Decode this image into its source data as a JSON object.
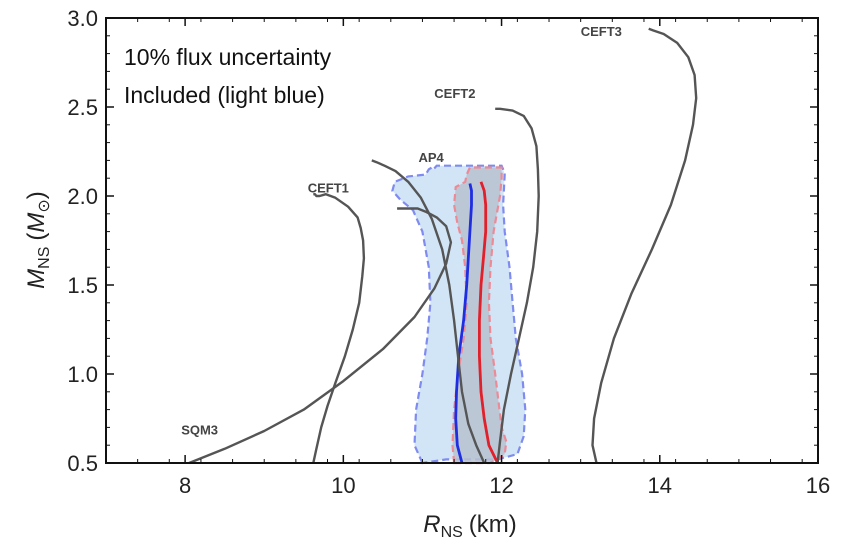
{
  "chart_data": {
    "type": "line",
    "xlabel": {
      "main": "R",
      "sub": "NS",
      "unit": "(km)"
    },
    "ylabel": {
      "main": "M",
      "sub": "NS",
      "unit_open": "(",
      "unit_main": "M",
      "unit_sub": "⊙",
      "unit_close": ")"
    },
    "xlim": [
      7,
      16
    ],
    "ylim": [
      0.5,
      3.0
    ],
    "xticks": [
      "8",
      "10",
      "12",
      "14",
      "16"
    ],
    "yticks": [
      "0.5",
      "1.0",
      "1.5",
      "2.0",
      "2.5",
      "3.0"
    ],
    "xtick_values": [
      8,
      10,
      12,
      14,
      16
    ],
    "ytick_values": [
      0.5,
      1.0,
      1.5,
      2.0,
      2.5,
      3.0
    ],
    "annotation": [
      "10% flux uncertainty",
      "Included (light blue)"
    ],
    "grid": false,
    "colors": {
      "eos": "#555555",
      "blue_line": "#1f2ee0",
      "red_line": "#e0202a",
      "light_blue_fill": "#d2e5f7",
      "light_blue_edge": "#7f8bf0",
      "gray_fill": "#b8c2d0",
      "pink_edge": "#ec8a96"
    },
    "series": [
      {
        "name": "CEFT1",
        "label_at": [
          9.55,
          2.02
        ],
        "x": [
          9.62,
          9.66,
          9.72,
          9.8,
          9.9,
          10.02,
          10.12,
          10.2,
          10.24,
          10.26,
          10.25,
          10.22,
          10.18,
          10.06,
          9.9,
          9.78,
          9.7,
          9.66,
          9.64,
          9.62
        ],
        "y": [
          0.5,
          0.58,
          0.7,
          0.82,
          0.95,
          1.1,
          1.25,
          1.4,
          1.55,
          1.65,
          1.75,
          1.82,
          1.88,
          1.94,
          1.99,
          2.01,
          2.0,
          2.0,
          2.01,
          2.01
        ]
      },
      {
        "name": "AP4",
        "label_at": [
          10.95,
          2.19
        ],
        "x": [
          11.78,
          11.68,
          11.58,
          11.5,
          11.45,
          11.4,
          11.34,
          11.25,
          11.12,
          10.98,
          10.82,
          10.66,
          10.52,
          10.42,
          10.36
        ],
        "y": [
          0.5,
          0.6,
          0.72,
          0.9,
          1.1,
          1.3,
          1.5,
          1.7,
          1.87,
          1.99,
          2.08,
          2.14,
          2.17,
          2.19,
          2.2
        ]
      },
      {
        "name": "SQM3",
        "label_at": [
          7.95,
          0.66
        ],
        "x": [
          8.05,
          8.5,
          9.0,
          9.5,
          10.0,
          10.5,
          10.9,
          11.15,
          11.3,
          11.36,
          11.3,
          11.18,
          11.05,
          10.94,
          10.8,
          10.68
        ],
        "y": [
          0.5,
          0.58,
          0.68,
          0.8,
          0.96,
          1.14,
          1.32,
          1.48,
          1.62,
          1.74,
          1.83,
          1.88,
          1.91,
          1.93,
          1.93,
          1.93
        ]
      },
      {
        "name": "CEFT2",
        "label_at": [
          11.15,
          2.55
        ],
        "x": [
          11.95,
          11.98,
          12.03,
          12.12,
          12.22,
          12.32,
          12.4,
          12.45,
          12.47,
          12.46,
          12.44,
          12.38,
          12.28,
          12.14,
          11.98,
          11.92
        ],
        "y": [
          0.5,
          0.62,
          0.8,
          1.0,
          1.2,
          1.4,
          1.6,
          1.8,
          2.0,
          2.15,
          2.28,
          2.38,
          2.45,
          2.48,
          2.49,
          2.49
        ]
      },
      {
        "name": "CEFT3",
        "label_at": [
          13.0,
          2.9
        ],
        "x": [
          13.2,
          13.15,
          13.17,
          13.26,
          13.42,
          13.64,
          13.9,
          14.14,
          14.32,
          14.42,
          14.46,
          14.44,
          14.36,
          14.22,
          14.05,
          13.92,
          13.86
        ],
        "y": [
          0.5,
          0.6,
          0.75,
          0.95,
          1.2,
          1.45,
          1.7,
          1.95,
          2.2,
          2.4,
          2.55,
          2.68,
          2.78,
          2.86,
          2.91,
          2.93,
          2.94
        ]
      }
    ],
    "regions": [
      {
        "role": "light_blue",
        "x": [
          11.0,
          10.9,
          10.92,
          11.0,
          11.06,
          11.1,
          11.08,
          11.0,
          10.88,
          10.72,
          10.62,
          10.65,
          10.82,
          11.04,
          11.08,
          11.12,
          11.14,
          11.18,
          11.24,
          12.0,
          12.02,
          12.04,
          12.02,
          12.04,
          12.1,
          12.14,
          12.18,
          12.26,
          12.3,
          12.28,
          12.2,
          11.95,
          11.3
        ],
        "y": [
          0.5,
          0.6,
          0.8,
          1.0,
          1.2,
          1.4,
          1.6,
          1.8,
          1.92,
          1.98,
          2.03,
          2.08,
          2.11,
          2.12,
          2.15,
          2.16,
          2.15,
          2.17,
          2.17,
          2.17,
          2.15,
          2.12,
          1.95,
          1.8,
          1.6,
          1.4,
          1.2,
          1.0,
          0.8,
          0.65,
          0.55,
          0.52,
          0.52
        ]
      },
      {
        "role": "gray",
        "x": [
          11.4,
          11.38,
          11.4,
          11.45,
          11.52,
          11.56,
          11.54,
          11.5,
          11.44,
          11.4,
          11.42,
          11.54,
          11.56,
          11.6,
          12.0,
          12.0,
          11.98,
          11.94,
          11.9,
          11.86,
          11.84,
          11.86,
          11.92,
          11.96,
          12.0,
          12.06,
          12.04,
          11.95,
          11.85,
          11.6
        ],
        "y": [
          0.5,
          0.6,
          0.8,
          1.0,
          1.2,
          1.4,
          1.6,
          1.75,
          1.85,
          1.95,
          2.05,
          2.08,
          2.12,
          2.16,
          2.16,
          2.1,
          2.0,
          1.9,
          1.8,
          1.6,
          1.4,
          1.2,
          1.0,
          0.85,
          0.7,
          0.62,
          0.55,
          0.52,
          0.5,
          0.5
        ]
      }
    ],
    "inner_lines": [
      {
        "role": "blue",
        "x": [
          11.5,
          11.44,
          11.42,
          11.43,
          11.46,
          11.52,
          11.56,
          11.58,
          11.6,
          11.62,
          11.62,
          11.6
        ],
        "y": [
          0.5,
          0.6,
          0.75,
          0.9,
          1.1,
          1.3,
          1.5,
          1.65,
          1.8,
          1.95,
          2.03,
          2.07
        ]
      },
      {
        "role": "red",
        "x": [
          11.95,
          11.84,
          11.78,
          11.74,
          11.72,
          11.72,
          11.74,
          11.77,
          11.8,
          11.8,
          11.78,
          11.74
        ],
        "y": [
          0.5,
          0.6,
          0.75,
          0.9,
          1.1,
          1.3,
          1.5,
          1.65,
          1.8,
          1.95,
          2.03,
          2.08
        ]
      }
    ]
  }
}
